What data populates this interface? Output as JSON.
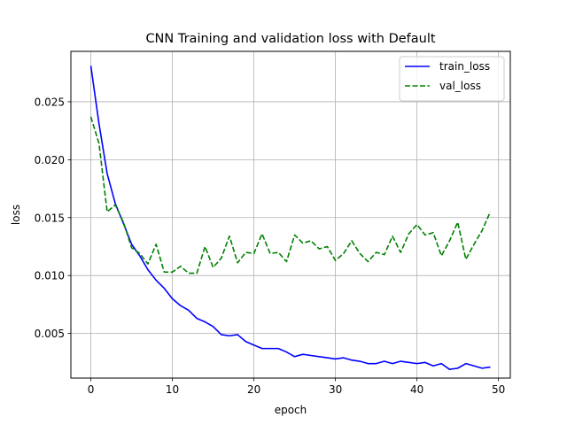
{
  "chart_data": {
    "type": "line",
    "title": "CNN Training and validation loss with Default",
    "xlabel": "epoch",
    "ylabel": "loss",
    "xlim": [
      -2.45,
      51.45
    ],
    "ylim": [
      0.00115,
      0.02935
    ],
    "xticks": [
      0,
      10,
      20,
      30,
      40,
      50
    ],
    "xtick_labels": [
      "0",
      "10",
      "20",
      "30",
      "40",
      "50"
    ],
    "yticks": [
      0.005,
      0.01,
      0.015,
      0.02,
      0.025
    ],
    "ytick_labels": [
      "0.005",
      "0.010",
      "0.015",
      "0.020",
      "0.025"
    ],
    "grid": true,
    "legend_position": "top-right",
    "x": [
      0,
      1,
      2,
      3,
      4,
      5,
      6,
      7,
      8,
      9,
      10,
      11,
      12,
      13,
      14,
      15,
      16,
      17,
      18,
      19,
      20,
      21,
      22,
      23,
      24,
      25,
      26,
      27,
      28,
      29,
      30,
      31,
      32,
      33,
      34,
      35,
      36,
      37,
      38,
      39,
      40,
      41,
      42,
      43,
      44,
      45,
      46,
      47,
      48,
      49
    ],
    "series": [
      {
        "name": "train_loss",
        "color": "#0000ff",
        "style": "solid",
        "values": [
          0.0281,
          0.0231,
          0.0188,
          0.0162,
          0.0145,
          0.0127,
          0.0117,
          0.0105,
          0.0096,
          0.0089,
          0.008,
          0.0074,
          0.007,
          0.0063,
          0.006,
          0.0056,
          0.0049,
          0.0048,
          0.0049,
          0.0043,
          0.004,
          0.0037,
          0.0037,
          0.0037,
          0.0034,
          0.003,
          0.0032,
          0.0031,
          0.003,
          0.0029,
          0.0028,
          0.0029,
          0.0027,
          0.0026,
          0.0024,
          0.0024,
          0.0026,
          0.0024,
          0.0026,
          0.0025,
          0.0024,
          0.0025,
          0.0022,
          0.0024,
          0.0019,
          0.002,
          0.0024,
          0.0022,
          0.002,
          0.0021
        ]
      },
      {
        "name": "val_loss",
        "color": "#008000",
        "style": "dashed",
        "values": [
          0.0237,
          0.0214,
          0.0155,
          0.0161,
          0.0146,
          0.0124,
          0.0119,
          0.011,
          0.0127,
          0.0103,
          0.0103,
          0.0108,
          0.0102,
          0.0102,
          0.0125,
          0.0107,
          0.0115,
          0.0134,
          0.0111,
          0.012,
          0.0119,
          0.0136,
          0.0119,
          0.012,
          0.0112,
          0.0135,
          0.0128,
          0.013,
          0.0123,
          0.0125,
          0.0113,
          0.0119,
          0.013,
          0.0119,
          0.0112,
          0.012,
          0.0118,
          0.0134,
          0.012,
          0.0136,
          0.0144,
          0.0135,
          0.0137,
          0.0117,
          0.013,
          0.0146,
          0.0114,
          0.0127,
          0.0139,
          0.0155
        ]
      }
    ]
  }
}
